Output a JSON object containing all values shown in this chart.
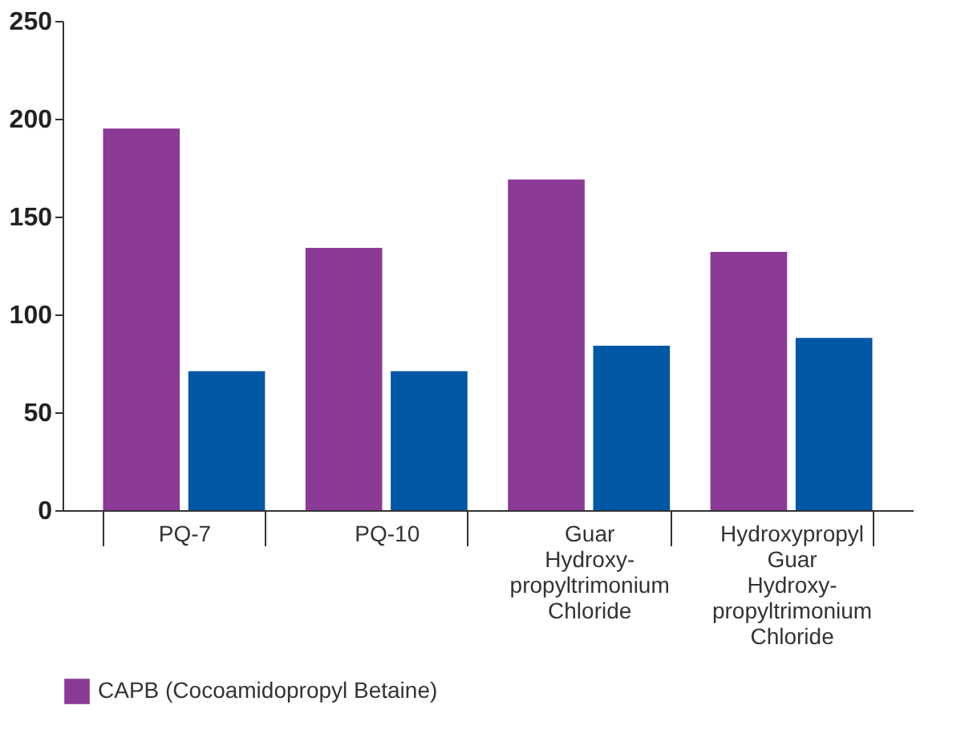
{
  "chart_data": {
    "type": "bar",
    "categories": [
      "PQ-7",
      "PQ-10",
      "Guar Hydroxy- propyltrimonium Chloride",
      "Hydroxypropyl Guar Hydroxy- propyltrimonium Chloride"
    ],
    "series": [
      {
        "name": "CAPB (Cocoamidopropyl Betaine)",
        "color": "#8b3a96",
        "values": [
          195,
          134,
          169,
          132
        ]
      },
      {
        "color": "#0057a5",
        "values": [
          71,
          71,
          84,
          88
        ]
      }
    ],
    "ylim": [
      0,
      250
    ],
    "yticks": [
      0,
      50,
      100,
      150,
      200,
      250
    ],
    "grid": false,
    "legend": "bottom left"
  }
}
